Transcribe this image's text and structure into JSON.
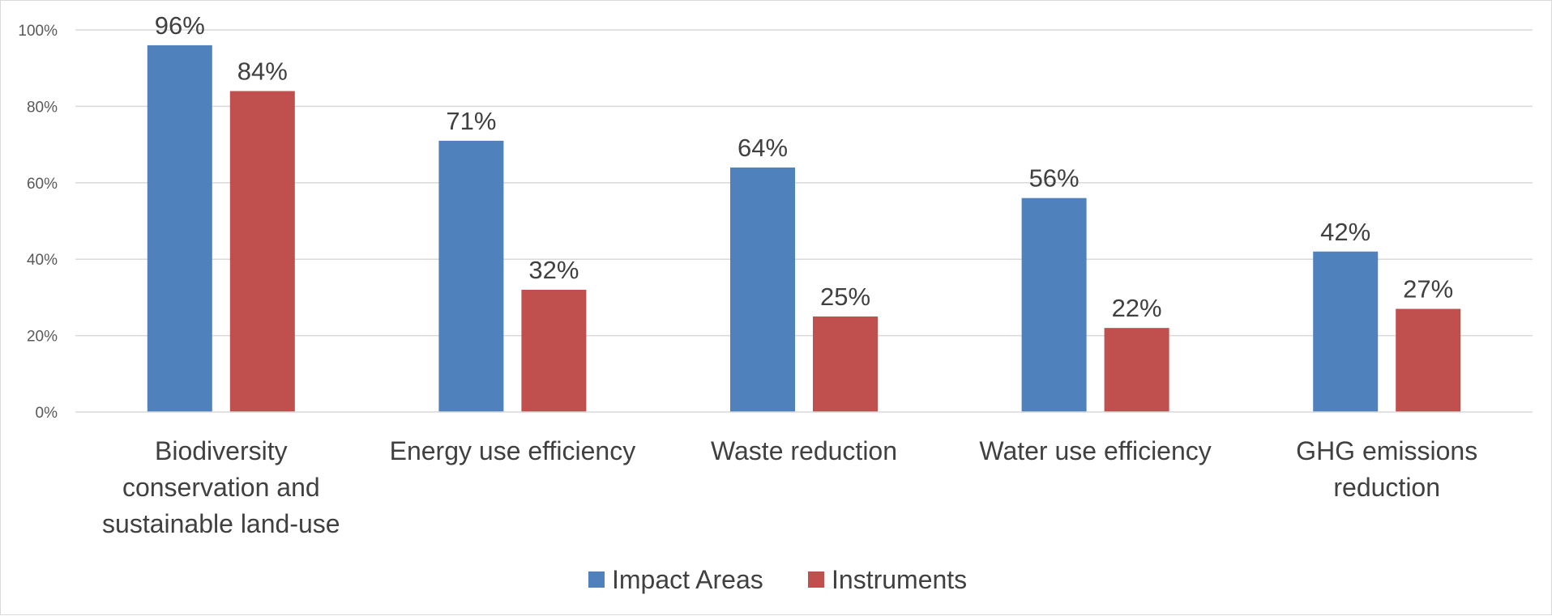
{
  "chart_data": {
    "type": "bar",
    "title": "",
    "xlabel": "",
    "ylabel": "",
    "ylim": [
      0,
      100
    ],
    "y_ticks": [
      "0%",
      "20%",
      "40%",
      "60%",
      "80%",
      "100%"
    ],
    "y_tick_values": [
      0,
      20,
      40,
      60,
      80,
      100
    ],
    "grid": true,
    "legend_position": "bottom-center",
    "categories": [
      [
        "Biodiversity",
        "conservation and",
        "sustainable land-use"
      ],
      [
        "Energy use efficiency"
      ],
      [
        "Waste reduction"
      ],
      [
        "Water use efficiency"
      ],
      [
        "GHG emissions",
        "reduction"
      ]
    ],
    "series": [
      {
        "name": "Impact Areas",
        "color": "#4f81bd",
        "values": [
          96,
          71,
          64,
          56,
          42
        ],
        "labels": [
          "96%",
          "71%",
          "64%",
          "56%",
          "42%"
        ]
      },
      {
        "name": "Instruments",
        "color": "#c0504d",
        "values": [
          84,
          32,
          25,
          22,
          27
        ],
        "labels": [
          "84%",
          "32%",
          "25%",
          "22%",
          "27%"
        ]
      }
    ]
  }
}
